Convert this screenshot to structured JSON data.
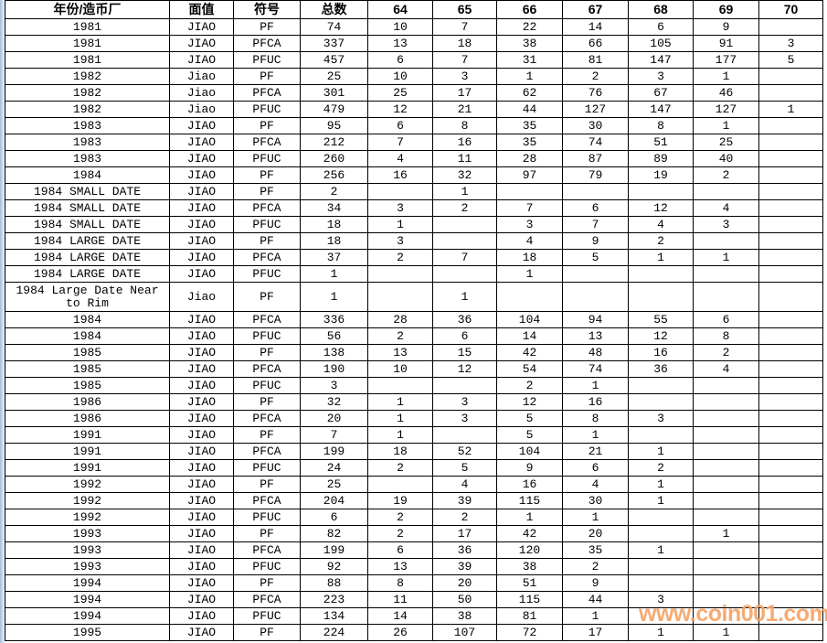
{
  "page": {
    "background_color": "#ffffff",
    "grid_line_color": "#000000",
    "left_strip_color": "#a3bfdc"
  },
  "watermark": {
    "text": "www.coin001.com",
    "color": "#f6a468"
  },
  "chart_data": {
    "type": "table",
    "columns": [
      "年份/造币厂",
      "面值",
      "符号",
      "总数",
      "64",
      "65",
      "66",
      "67",
      "68",
      "69",
      "70"
    ],
    "rows": [
      [
        "1981",
        "JIAO",
        "PF",
        "74",
        "10",
        "7",
        "22",
        "14",
        "6",
        "9",
        ""
      ],
      [
        "1981",
        "JIAO",
        "PFCA",
        "337",
        "13",
        "18",
        "38",
        "66",
        "105",
        "91",
        "3"
      ],
      [
        "1981",
        "JIAO",
        "PFUC",
        "457",
        "6",
        "7",
        "31",
        "81",
        "147",
        "177",
        "5"
      ],
      [
        "1982",
        "Jiao",
        "PF",
        "25",
        "10",
        "3",
        "1",
        "2",
        "3",
        "1",
        ""
      ],
      [
        "1982",
        "Jiao",
        "PFCA",
        "301",
        "25",
        "17",
        "62",
        "76",
        "67",
        "46",
        ""
      ],
      [
        "1982",
        "Jiao",
        "PFUC",
        "479",
        "12",
        "21",
        "44",
        "127",
        "147",
        "127",
        "1"
      ],
      [
        "1983",
        "JIAO",
        "PF",
        "95",
        "6",
        "8",
        "35",
        "30",
        "8",
        "1",
        ""
      ],
      [
        "1983",
        "JIAO",
        "PFCA",
        "212",
        "7",
        "16",
        "35",
        "74",
        "51",
        "25",
        ""
      ],
      [
        "1983",
        "JIAO",
        "PFUC",
        "260",
        "4",
        "11",
        "28",
        "87",
        "89",
        "40",
        ""
      ],
      [
        "1984",
        "JIAO",
        "PF",
        "256",
        "16",
        "32",
        "97",
        "79",
        "19",
        "2",
        ""
      ],
      [
        "1984 SMALL DATE",
        "JIAO",
        "PF",
        "2",
        "",
        "1",
        "",
        "",
        "",
        "",
        ""
      ],
      [
        "1984 SMALL DATE",
        "JIAO",
        "PFCA",
        "34",
        "3",
        "2",
        "7",
        "6",
        "12",
        "4",
        ""
      ],
      [
        "1984 SMALL DATE",
        "JIAO",
        "PFUC",
        "18",
        "1",
        "",
        "3",
        "7",
        "4",
        "3",
        ""
      ],
      [
        "1984 LARGE DATE",
        "JIAO",
        "PF",
        "18",
        "3",
        "",
        "4",
        "9",
        "2",
        "",
        ""
      ],
      [
        "1984 LARGE DATE",
        "JIAO",
        "PFCA",
        "37",
        "2",
        "7",
        "18",
        "5",
        "1",
        "1",
        ""
      ],
      [
        "1984 LARGE DATE",
        "JIAO",
        "PFUC",
        "1",
        "",
        "",
        "1",
        "",
        "",
        "",
        ""
      ],
      [
        "1984 Large Date Near to Rim",
        "Jiao",
        "PF",
        "1",
        "",
        "1",
        "",
        "",
        "",
        "",
        ""
      ],
      [
        "1984",
        "JIAO",
        "PFCA",
        "336",
        "28",
        "36",
        "104",
        "94",
        "55",
        "6",
        ""
      ],
      [
        "1984",
        "JIAO",
        "PFUC",
        "56",
        "2",
        "6",
        "14",
        "13",
        "12",
        "8",
        ""
      ],
      [
        "1985",
        "JIAO",
        "PF",
        "138",
        "13",
        "15",
        "42",
        "48",
        "16",
        "2",
        ""
      ],
      [
        "1985",
        "JIAO",
        "PFCA",
        "190",
        "10",
        "12",
        "54",
        "74",
        "36",
        "4",
        ""
      ],
      [
        "1985",
        "JIAO",
        "PFUC",
        "3",
        "",
        "",
        "2",
        "1",
        "",
        "",
        ""
      ],
      [
        "1986",
        "JIAO",
        "PF",
        "32",
        "1",
        "3",
        "12",
        "16",
        "",
        "",
        ""
      ],
      [
        "1986",
        "JIAO",
        "PFCA",
        "20",
        "1",
        "3",
        "5",
        "8",
        "3",
        "",
        ""
      ],
      [
        "1991",
        "JIAO",
        "PF",
        "7",
        "1",
        "",
        "5",
        "1",
        "",
        "",
        ""
      ],
      [
        "1991",
        "JIAO",
        "PFCA",
        "199",
        "18",
        "52",
        "104",
        "21",
        "1",
        "",
        ""
      ],
      [
        "1991",
        "JIAO",
        "PFUC",
        "24",
        "2",
        "5",
        "9",
        "6",
        "2",
        "",
        ""
      ],
      [
        "1992",
        "JIAO",
        "PF",
        "25",
        "",
        "4",
        "16",
        "4",
        "1",
        "",
        ""
      ],
      [
        "1992",
        "JIAO",
        "PFCA",
        "204",
        "19",
        "39",
        "115",
        "30",
        "1",
        "",
        ""
      ],
      [
        "1992",
        "JIAO",
        "PFUC",
        "6",
        "2",
        "2",
        "1",
        "1",
        "",
        "",
        ""
      ],
      [
        "1993",
        "JIAO",
        "PF",
        "82",
        "2",
        "17",
        "42",
        "20",
        "",
        "1",
        ""
      ],
      [
        "1993",
        "JIAO",
        "PFCA",
        "199",
        "6",
        "36",
        "120",
        "35",
        "1",
        "",
        ""
      ],
      [
        "1993",
        "JIAO",
        "PFUC",
        "92",
        "13",
        "39",
        "38",
        "2",
        "",
        "",
        ""
      ],
      [
        "1994",
        "JIAO",
        "PF",
        "88",
        "8",
        "20",
        "51",
        "9",
        "",
        "",
        ""
      ],
      [
        "1994",
        "JIAO",
        "PFCA",
        "223",
        "11",
        "50",
        "115",
        "44",
        "3",
        "",
        ""
      ],
      [
        "1994",
        "JIAO",
        "PFUC",
        "134",
        "14",
        "38",
        "81",
        "1",
        "",
        "",
        ""
      ],
      [
        "1995",
        "JIAO",
        "PF",
        "224",
        "26",
        "107",
        "72",
        "17",
        "1",
        "1",
        ""
      ]
    ]
  }
}
